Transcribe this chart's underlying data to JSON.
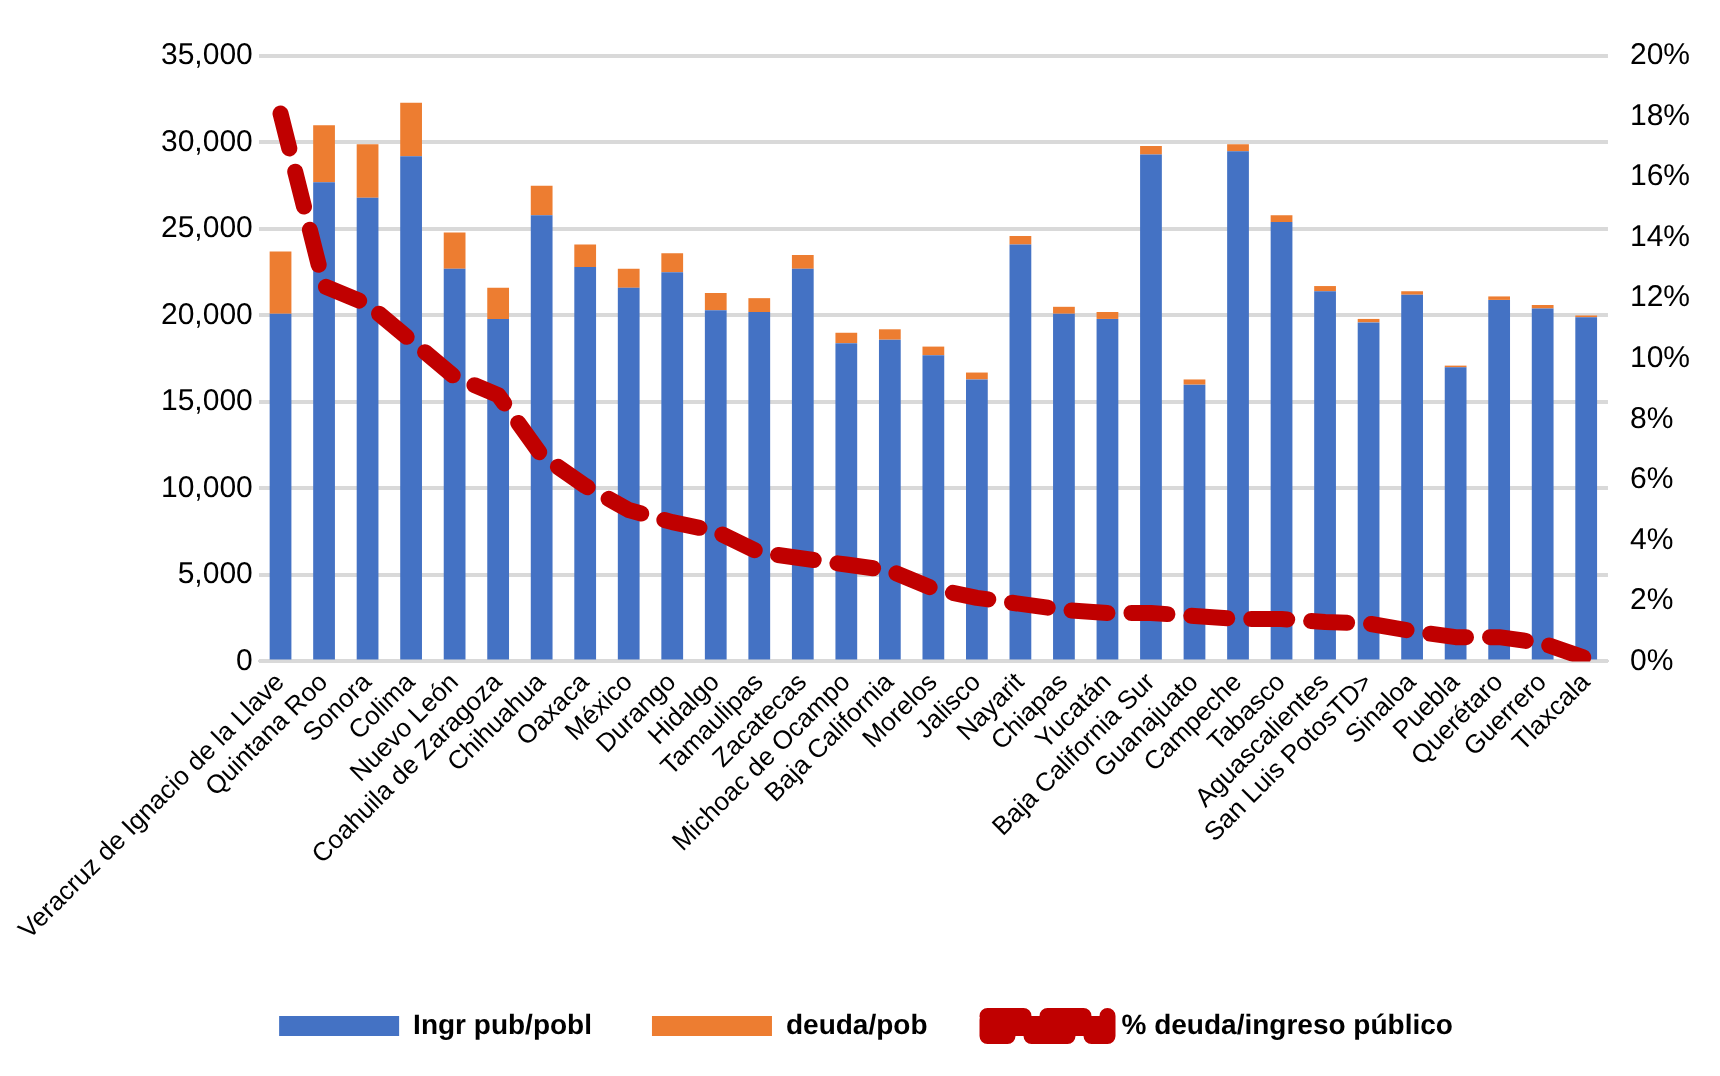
{
  "chart_data": {
    "type": "bar",
    "stacked": true,
    "categories": [
      "Veracruz de Ignacio de la Llave",
      "Quintana Roo",
      "Sonora",
      "Colima",
      "Nuevo León",
      "Coahuila de Zaragoza",
      "Chihuahua",
      "Oaxaca",
      "México",
      "Durango",
      "Hidalgo",
      "Tamaulipas",
      "Zacatecas",
      "Michoac de Ocampo",
      "Baja California",
      "Morelos",
      "Jalisco",
      "Nayarit",
      "Chiapas",
      "Yucatán",
      "Baja California Sur",
      "Guanajuato",
      "Campeche",
      "Tabasco",
      "Aguascalientes",
      "San Luis PotosTD>",
      "Sinaloa",
      "Puebla",
      "Querétaro",
      "Guerrero",
      "Tlaxcala"
    ],
    "series": [
      {
        "name": "Ingr pub/pobl",
        "color": "#4472c4",
        "values": [
          20100,
          27700,
          26800,
          29200,
          22700,
          19800,
          25800,
          22800,
          21600,
          22500,
          20300,
          20200,
          22700,
          18400,
          18600,
          17700,
          16300,
          24100,
          20100,
          19800,
          29300,
          16000,
          29500,
          25400,
          21400,
          19600,
          21200,
          17000,
          20900,
          20400,
          19900
        ]
      },
      {
        "name": "deuda/pob",
        "color": "#ed7d31",
        "values": [
          3600,
          3300,
          3100,
          3100,
          2100,
          1800,
          1700,
          1300,
          1100,
          1100,
          1000,
          800,
          800,
          600,
          600,
          500,
          400,
          500,
          400,
          400,
          500,
          300,
          400,
          400,
          300,
          200,
          200,
          100,
          200,
          200,
          100
        ]
      },
      {
        "name": "% deuda/ingreso público",
        "type": "line",
        "axis": "y2",
        "color": "#c00000",
        "line_style": "dashed",
        "marker": "none",
        "values": [
          18.1,
          12.4,
          11.8,
          10.6,
          9.4,
          8.8,
          6.8,
          5.8,
          5.0,
          4.6,
          4.3,
          3.6,
          3.4,
          3.2,
          3.0,
          2.4,
          2.1,
          1.9,
          1.7,
          1.6,
          1.6,
          1.5,
          1.4,
          1.4,
          1.3,
          1.25,
          1.0,
          0.8,
          0.8,
          0.6,
          0.1
        ]
      }
    ],
    "ylim": [
      0,
      35000
    ],
    "yticks": [
      {
        "value": 0,
        "label": "0"
      },
      {
        "value": 5000,
        "label": "5,000"
      },
      {
        "value": 10000,
        "label": "10,000"
      },
      {
        "value": 15000,
        "label": "15,000"
      },
      {
        "value": 20000,
        "label": "20,000"
      },
      {
        "value": 25000,
        "label": "25,000"
      },
      {
        "value": 30000,
        "label": "30,000"
      },
      {
        "value": 35000,
        "label": "35,000"
      }
    ],
    "y2lim": [
      0,
      20
    ],
    "y2ticks": [
      {
        "value": 0,
        "label": "0%"
      },
      {
        "value": 2,
        "label": "2%"
      },
      {
        "value": 4,
        "label": "4%"
      },
      {
        "value": 6,
        "label": "6%"
      },
      {
        "value": 8,
        "label": "8%"
      },
      {
        "value": 10,
        "label": "10%"
      },
      {
        "value": 12,
        "label": "12%"
      },
      {
        "value": 14,
        "label": "14%"
      },
      {
        "value": 16,
        "label": "16%"
      },
      {
        "value": 18,
        "label": "18%"
      },
      {
        "value": 20,
        "label": "20%"
      }
    ],
    "grid": "y",
    "legend": "bottom"
  }
}
